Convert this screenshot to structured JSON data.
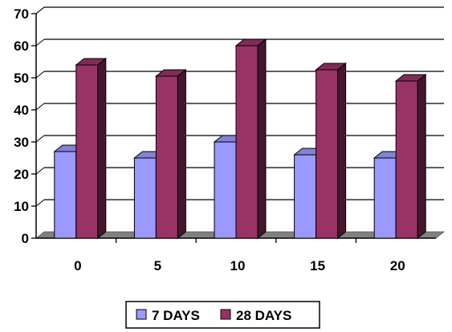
{
  "chart_data": {
    "type": "bar",
    "style": "3d-clustered",
    "title": "",
    "xlabel": "",
    "ylabel": "",
    "categories": [
      "0",
      "5",
      "10",
      "15",
      "20"
    ],
    "series": [
      {
        "name": "7 DAYS",
        "values": [
          27,
          25,
          30,
          26,
          25
        ],
        "color": "#9999ff"
      },
      {
        "name": "28 DAYS",
        "values": [
          54,
          50.5,
          60,
          52.5,
          49
        ],
        "color": "#993366"
      }
    ],
    "ylim": [
      0,
      70
    ],
    "yticks": [
      0,
      10,
      20,
      30,
      40,
      50,
      60,
      70
    ],
    "grid": true,
    "legend_position": "bottom",
    "floor_color": "#808080"
  }
}
